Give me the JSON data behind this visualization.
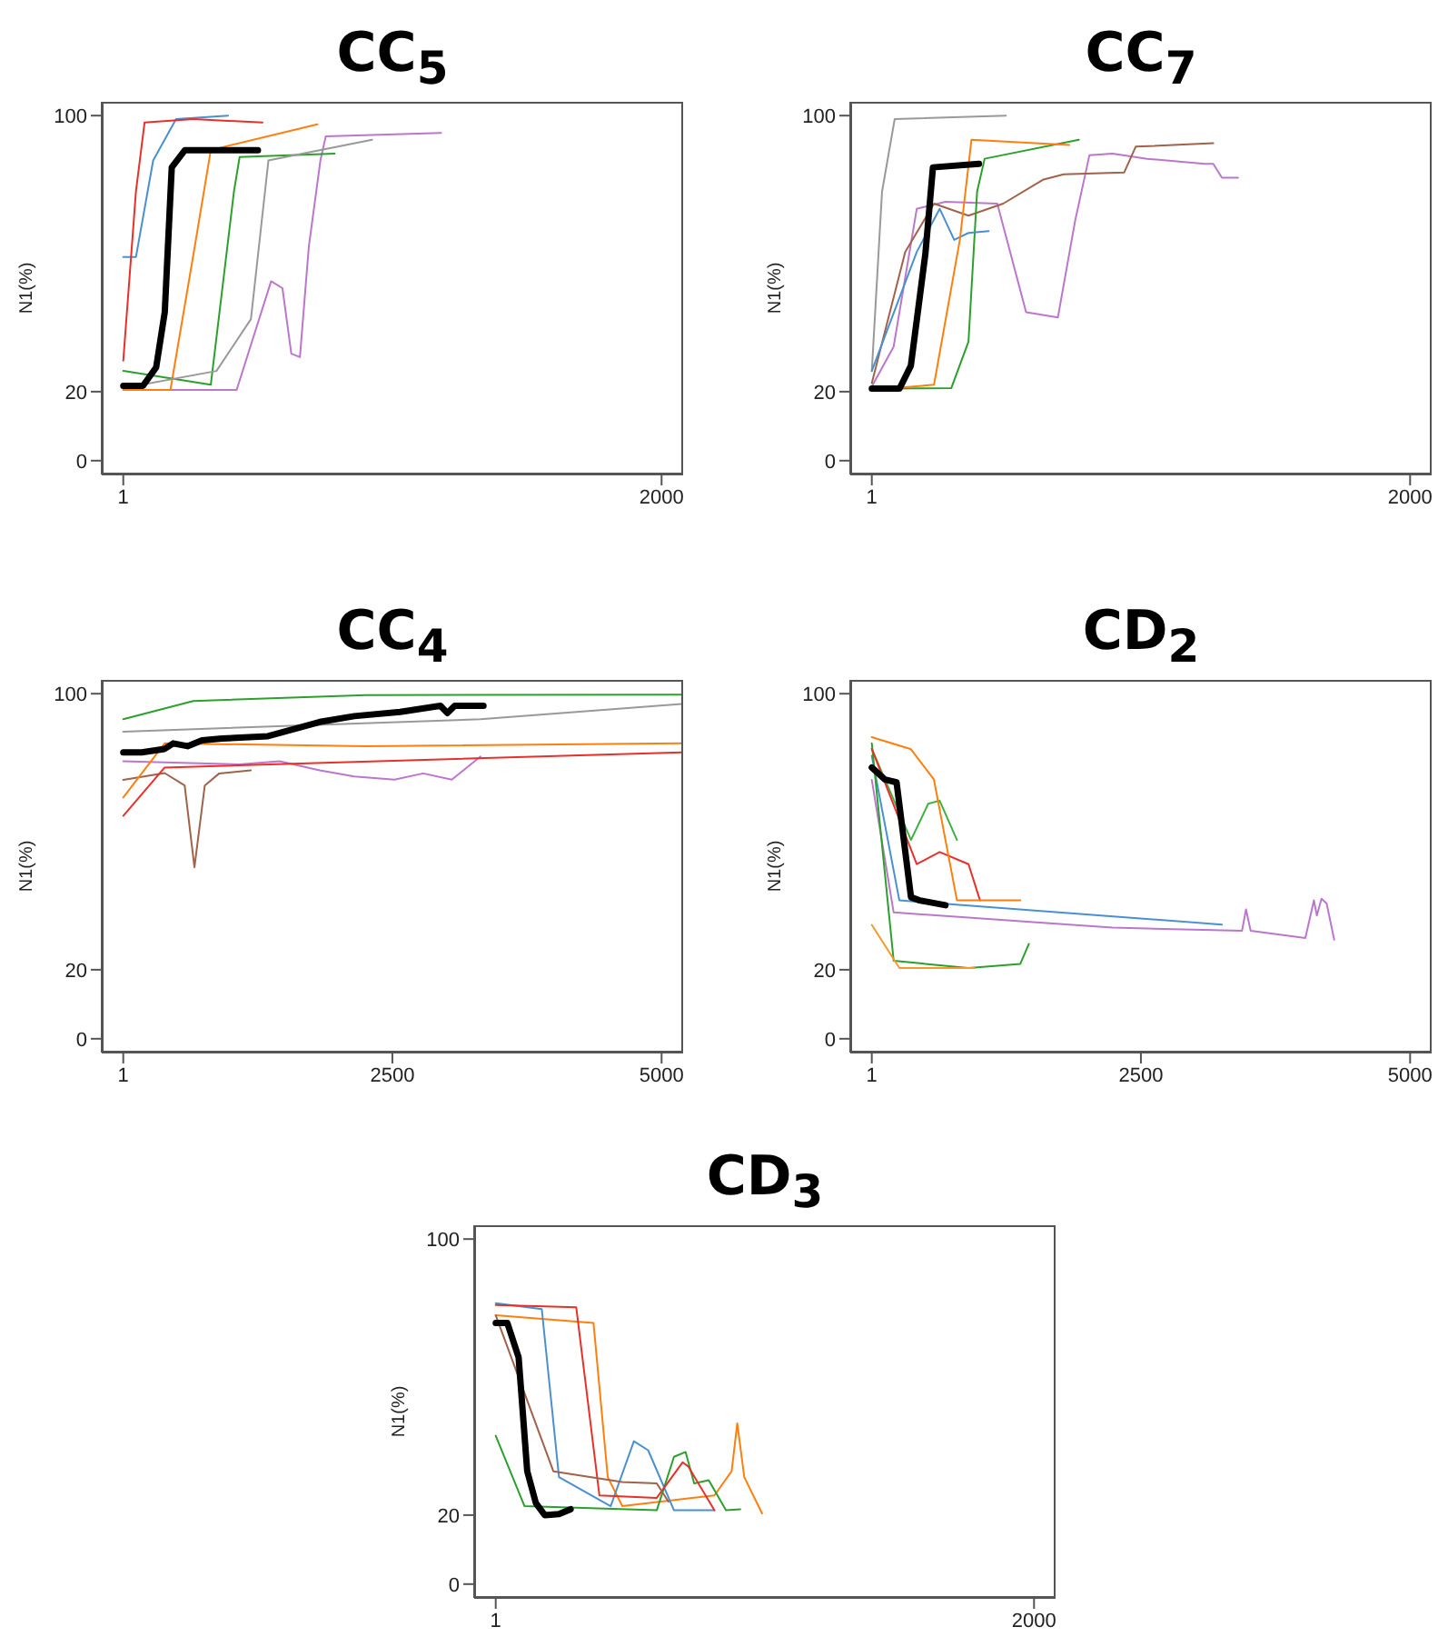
{
  "chart_data": [
    {
      "type": "line",
      "title": "CC$_{5}$",
      "ylabel": "N1(%)",
      "xlim": [
        -79,
        2080
      ],
      "ylim": [
        -4,
        104
      ],
      "xticks": [
        1,
        2000
      ],
      "yticks": [
        0,
        20,
        100
      ],
      "grid": false,
      "legend": false,
      "marker": "none",
      "line_style": "solid",
      "series": [
        {
          "color": "#000000",
          "x": [
            1,
            74,
            123,
            155,
            181,
            230,
            501
          ],
          "values": [
            21.7,
            21.7,
            27,
            43,
            85,
            90,
            90
          ]
        },
        {
          "color": "#bb77cc",
          "x": [
            1,
            422,
            550,
            592,
            625,
            657,
            690,
            733,
            753,
            1181
          ],
          "values": [
            20.5,
            20.5,
            52,
            50,
            31,
            30,
            62,
            87,
            94,
            95
          ]
        },
        {
          "color": "#4a90d0",
          "x": [
            1,
            48,
            112,
            197,
            390
          ],
          "values": [
            59,
            59,
            87,
            99,
            100
          ]
        },
        {
          "color": "#ff7f0e",
          "x": [
            1,
            176,
            262,
            326,
            722
          ],
          "values": [
            20.5,
            20.5,
            60,
            90,
            97.5
          ]
        },
        {
          "color": "#2ca02c",
          "x": [
            1,
            326,
            412,
            433,
            786
          ],
          "values": [
            26,
            22,
            78,
            88,
            89
          ]
        },
        {
          "color": "#e8302a",
          "x": [
            1,
            48,
            80,
            262,
            518
          ],
          "values": [
            29,
            78,
            98,
            99,
            98
          ]
        },
        {
          "color": "#999999",
          "x": [
            1,
            347,
            475,
            540,
            925
          ],
          "values": [
            21,
            26,
            41,
            87,
            93
          ]
        }
      ]
    },
    {
      "type": "line",
      "title": "CC$_{7}$",
      "ylabel": "N1(%)",
      "xlim": [
        -79,
        2080
      ],
      "ylim": [
        -4,
        104
      ],
      "xticks": [
        1,
        2000
      ],
      "yticks": [
        0,
        20,
        100
      ],
      "grid": false,
      "legend": false,
      "marker": "none",
      "line_style": "solid",
      "series": [
        {
          "color": "#000000",
          "x": [
            1,
            104,
            146,
            200,
            228,
            399
          ],
          "values": [
            20.9,
            20.9,
            27.5,
            60,
            85,
            86
          ]
        },
        {
          "color": "#bb77cc",
          "x": [
            1,
            82,
            168,
            275,
            467,
            574,
            692,
            756,
            809,
            895,
            1023,
            1237,
            1269,
            1301,
            1361
          ],
          "values": [
            21.5,
            33,
            73,
            75,
            74.5,
            43,
            41.5,
            69.5,
            88.5,
            89,
            87.5,
            86,
            86,
            82,
            82
          ]
        },
        {
          "color": "#a0624a",
          "x": [
            1,
            125,
            232,
            360,
            489,
            639,
            714,
            938,
            981,
            1269
          ],
          "values": [
            22.5,
            60.5,
            74.5,
            71,
            74.5,
            81.5,
            83,
            83.5,
            91,
            92
          ]
        },
        {
          "color": "#2ca02c",
          "x": [
            1,
            296,
            360,
            392,
            420,
            770
          ],
          "values": [
            20.9,
            21,
            34.5,
            78,
            87.5,
            93
          ]
        },
        {
          "color": "#999999",
          "x": [
            1,
            39,
            86,
            499
          ],
          "values": [
            26,
            78,
            99,
            100
          ]
        },
        {
          "color": "#4a90d0",
          "x": [
            1,
            168,
            253,
            307,
            360,
            435
          ],
          "values": [
            26,
            60.5,
            73,
            64,
            66,
            66.5
          ]
        },
        {
          "color": "#ff7f0e",
          "x": [
            1,
            232,
            328,
            371,
            734
          ],
          "values": [
            20.5,
            22,
            64,
            93,
            91.5
          ]
        }
      ]
    },
    {
      "type": "line",
      "title": "CC$_{4}$",
      "ylabel": "N1(%)",
      "xlim": [
        -199,
        5200
      ],
      "ylim": [
        -4,
        104
      ],
      "xticks": [
        1,
        2500,
        5000
      ],
      "yticks": [
        0,
        20,
        100
      ],
      "grid": false,
      "legend": false,
      "marker": "none",
      "line_style": "solid",
      "series": [
        {
          "color": "#000000",
          "x": [
            1,
            172,
            385,
            465,
            598,
            732,
            918,
            1345,
            1825,
            2146,
            2572,
            2946,
            3010,
            3079,
            3346
          ],
          "values": [
            83,
            83,
            84,
            85.6,
            84.8,
            86.5,
            87,
            87.7,
            91.8,
            93.5,
            94.7,
            96.5,
            94.4,
            96.5,
            96.5
          ]
        },
        {
          "color": "#a0624a",
          "x": [
            1,
            385,
            571,
            662,
            758,
            892,
            1185
          ],
          "values": [
            75,
            77,
            73.4,
            49.7,
            73.4,
            76.9,
            77.8
          ]
        },
        {
          "color": "#bb77cc",
          "x": [
            1,
            1078,
            1452,
            1825,
            2146,
            2519,
            2786,
            3052,
            3319
          ],
          "values": [
            80.4,
            79.5,
            80.4,
            77.8,
            76,
            75.1,
            76.9,
            75.1,
            81.8
          ]
        },
        {
          "color": "#2ca02c",
          "x": [
            1,
            651,
            2252,
            5186
          ],
          "values": [
            92.6,
            97.9,
            99.6,
            99.7
          ]
        },
        {
          "color": "#ff7f0e",
          "x": [
            1,
            385,
            2252,
            5186
          ],
          "values": [
            69.9,
            85.6,
            84.8,
            85.6
          ]
        },
        {
          "color": "#e8302a",
          "x": [
            1,
            385,
            5186
          ],
          "values": [
            64.6,
            78.6,
            83
          ]
        },
        {
          "color": "#999999",
          "x": [
            1,
            3319,
            5186
          ],
          "values": [
            89,
            92.6,
            97
          ]
        }
      ]
    },
    {
      "type": "line",
      "title": "CD$_{2}$",
      "ylabel": "N1(%)",
      "xlim": [
        -199,
        5200
      ],
      "ylim": [
        -4,
        104
      ],
      "xticks": [
        1,
        2500,
        5000
      ],
      "yticks": [
        0,
        20,
        100
      ],
      "grid": false,
      "legend": false,
      "marker": "none",
      "line_style": "solid",
      "series": [
        {
          "color": "#000000",
          "x": [
            1,
            124,
            231,
            365,
            445,
            685
          ],
          "values": [
            78.6,
            75.1,
            74.3,
            41,
            40.1,
            38.7
          ]
        },
        {
          "color": "#bb77cc",
          "x": [
            1,
            204,
            2236,
            3439,
            3476,
            3519,
            4027,
            4107,
            4134,
            4177,
            4225,
            4295
          ],
          "values": [
            75,
            36.6,
            32.2,
            31.3,
            37.5,
            31.3,
            29.2,
            40.1,
            35.7,
            40.6,
            39.2,
            28.7
          ]
        },
        {
          "color": "#4a90d0",
          "x": [
            1,
            257,
            3252
          ],
          "values": [
            82,
            40.1,
            33.1
          ]
        },
        {
          "color": "#2ca02c",
          "x": [
            1,
            204,
            899,
            1380,
            1460
          ],
          "values": [
            85.6,
            22.6,
            20.5,
            21.7,
            27.5
          ]
        },
        {
          "color": "#3fb03f",
          "x": [
            1,
            365,
            525,
            631,
            792
          ],
          "values": [
            84,
            57.6,
            68.1,
            69,
            57.6
          ]
        },
        {
          "color": "#e8302a",
          "x": [
            1,
            418,
            631,
            899,
            1006
          ],
          "values": [
            84,
            50.6,
            54.1,
            50.6,
            40.1
          ]
        },
        {
          "color": "#ff7f0e",
          "x": [
            1,
            365,
            578,
            792,
            1380
          ],
          "values": [
            87.4,
            83.9,
            75.1,
            40.1,
            40.1
          ]
        },
        {
          "color": "#f39a2a",
          "x": [
            1,
            257,
            952
          ],
          "values": [
            33,
            20.5,
            20.5
          ]
        }
      ]
    },
    {
      "type": "line",
      "title": "CD$_{3}$",
      "ylabel": "N1(%)",
      "xlim": [
        -79,
        2080
      ],
      "ylim": [
        -4,
        104
      ],
      "xticks": [
        1,
        2000
      ],
      "yticks": [
        0,
        20,
        100
      ],
      "grid": false,
      "legend": false,
      "marker": "none",
      "line_style": "solid",
      "series": [
        {
          "color": "#000000",
          "x": [
            1,
            44,
            86,
            118,
            150,
            183,
            236,
            279
          ],
          "values": [
            75.7,
            75.7,
            65.7,
            32.7,
            23.5,
            20,
            20.3,
            21.7
          ]
        },
        {
          "color": "#ff7f0e",
          "x": [
            1,
            364,
            417,
            471,
            813,
            877,
            898,
            924,
            990
          ],
          "values": [
            77.9,
            75.7,
            31,
            22.6,
            25.7,
            32.7,
            46.6,
            31,
            20.5
          ]
        },
        {
          "color": "#4a90d0",
          "x": [
            1,
            172,
            236,
            428,
            514,
            567,
            663,
            813
          ],
          "values": [
            81.4,
            79.7,
            31,
            22.6,
            41.4,
            38.8,
            21.4,
            21.4
          ]
        },
        {
          "color": "#2ca02c",
          "x": [
            1,
            108,
            599,
            663,
            706,
            738,
            792,
            856,
            909
          ],
          "values": [
            43,
            22.6,
            21.4,
            36.9,
            38.3,
            29.2,
            30.1,
            21.4,
            21.7
          ]
        },
        {
          "color": "#e8302a",
          "x": [
            1,
            300,
            386,
            599,
            695,
            716,
            813
          ],
          "values": [
            80.9,
            80.2,
            25.7,
            25,
            35.3,
            34.1,
            21.4
          ]
        },
        {
          "color": "#a0624a",
          "x": [
            1,
            215,
            471,
            599,
            642
          ],
          "values": [
            77.9,
            32.7,
            29.6,
            29.2,
            23.9
          ]
        }
      ]
    }
  ]
}
